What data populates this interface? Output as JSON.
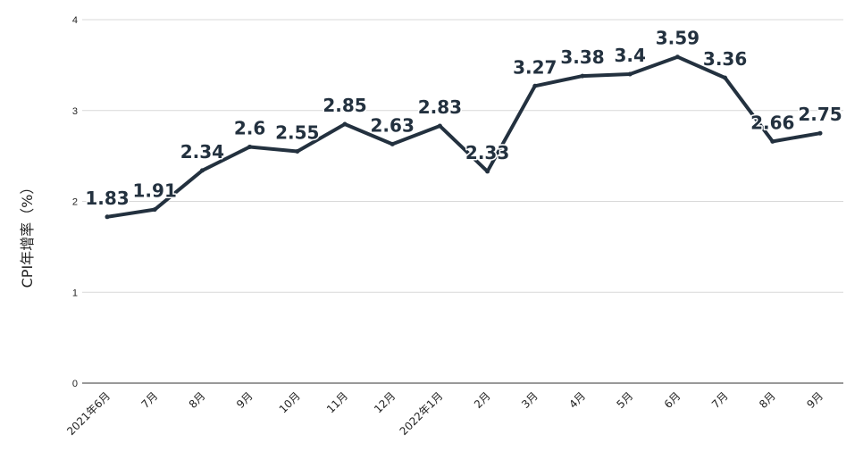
{
  "chart_data": {
    "type": "line",
    "title": "",
    "xlabel": "",
    "ylabel": "CPI年增率（%）",
    "categories": [
      "2021年6月",
      "7月",
      "8月",
      "9月",
      "10月",
      "11月",
      "12月",
      "2022年1月",
      "2月",
      "3月",
      "4月",
      "5月",
      "6月",
      "7月",
      "8月",
      "9月"
    ],
    "yticks": [
      "0",
      "1",
      "2",
      "3",
      "4"
    ],
    "ylim": [
      0,
      4
    ],
    "grid": true,
    "legend": "none",
    "series": [
      {
        "values": [
          1.83,
          1.91,
          2.34,
          2.6,
          2.55,
          2.85,
          2.63,
          2.83,
          2.33,
          3.27,
          3.38,
          3.4,
          3.59,
          3.36,
          2.66,
          2.75
        ],
        "labels": [
          "1.83",
          "1.91",
          "2.34",
          "2.6",
          "2.55",
          "2.85",
          "2.63",
          "2.83",
          "2.33",
          "3.27",
          "3.38",
          "3.4",
          "3.59",
          "3.36",
          "2.66",
          "2.75"
        ],
        "color": "#23313f"
      }
    ]
  }
}
